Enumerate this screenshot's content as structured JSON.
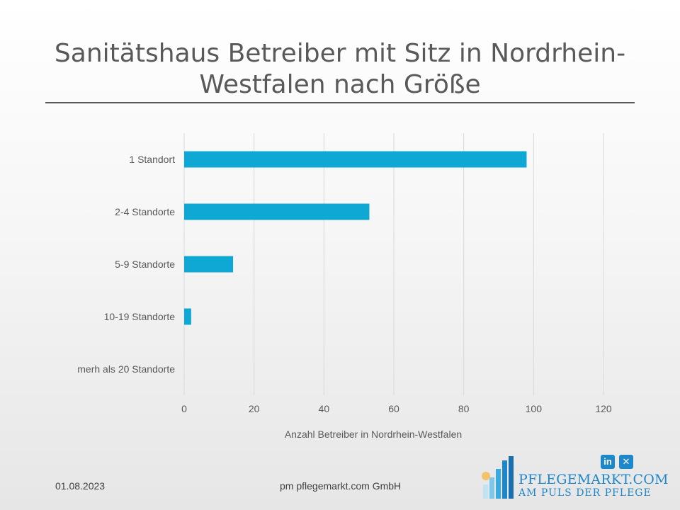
{
  "slide": {
    "title": "Sanitätshaus Betreiber mit Sitz in Nordrhein-Westfalen nach Größe",
    "date": "01.08.2023",
    "company": "pm pflegemarkt.com GmbH",
    "logo_name": "PFLEGEMARKT.COM",
    "logo_tagline": "AM PULS DER PFLEGE",
    "social_linkedin": "in",
    "social_xing": "✕"
  },
  "colors": {
    "bar": "#0fa8d4",
    "grid": "#d9d9d9",
    "text": "#595959",
    "brand": "#1e87c9"
  },
  "chart_data": {
    "type": "bar",
    "orientation": "horizontal",
    "categories": [
      "1 Standort",
      "2-4 Standorte",
      "5-9 Standorte",
      "10-19 Standorte",
      "merh als 20 Standorte"
    ],
    "values": [
      98,
      53,
      14,
      2,
      0
    ],
    "xlabel": "Anzahl Betreiber in Nordrhein-Westfalen",
    "ylabel": "",
    "xlim": [
      0,
      120
    ],
    "xticks": [
      "0",
      "20",
      "40",
      "60",
      "80",
      "100",
      "120"
    ],
    "grid": true,
    "legend": "none"
  }
}
